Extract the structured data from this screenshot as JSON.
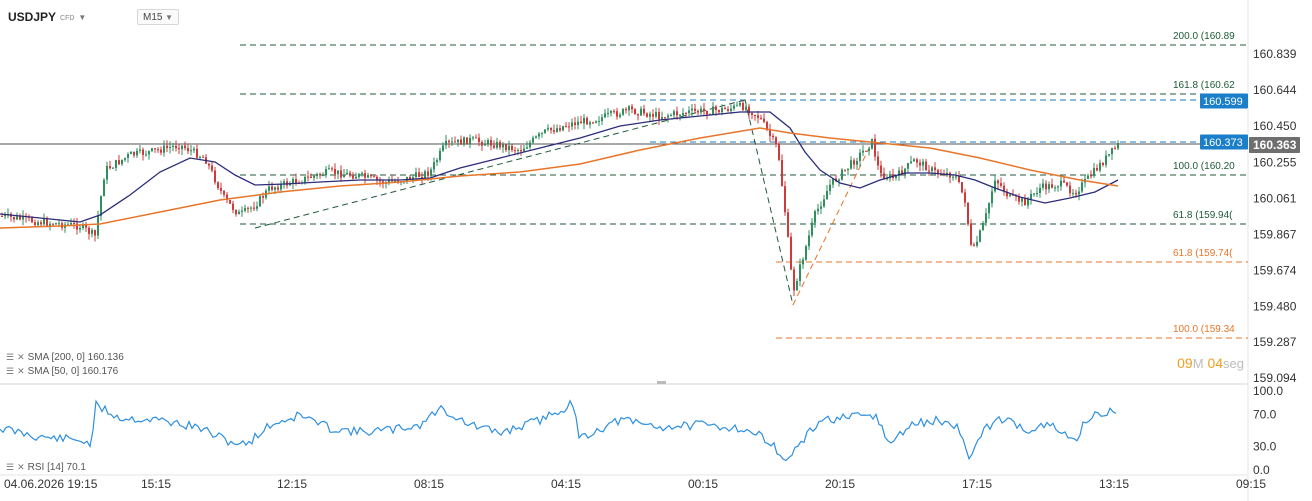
{
  "header": {
    "symbol": "USDJPY",
    "symbol_tag": "CFD",
    "timeframe": "M15"
  },
  "price_axis": {
    "labels": [
      "160.839",
      "160.644",
      "160.450",
      "160.255",
      "160.061",
      "159.867",
      "159.674",
      "159.480",
      "159.287",
      "159.094"
    ]
  },
  "price_tags": {
    "last_price": "160.363",
    "line_a": "160.373",
    "line_b": "160.599"
  },
  "fib_labels": [
    {
      "text": "200.0 (160.89",
      "color": "#1f5a3a"
    },
    {
      "text": "161.8 (160.62",
      "color": "#1f5a3a"
    },
    {
      "text": "100.0 (160.20",
      "color": "#1f5a3a"
    },
    {
      "text": "61.8 (159.94(",
      "color": "#1f5a3a"
    },
    {
      "text": "61.8 (159.74(",
      "color": "#e8752a"
    },
    {
      "text": "100.0 (159.34",
      "color": "#e8752a"
    }
  ],
  "indicators": {
    "sma200": "SMA [200, 0] 160.136",
    "sma50": "SMA [50, 0] 160.176",
    "rsi": "RSI [14] 70.1"
  },
  "rsi_axis": {
    "labels": [
      "100.0",
      "70.0",
      "30.0",
      "0.0"
    ]
  },
  "time_axis": {
    "labels": [
      "04.06.2026 19:15",
      "15:15",
      "12:15",
      "08:15",
      "04:15",
      "00:15",
      "20:15",
      "17:15",
      "13:15",
      "09:15"
    ]
  },
  "timer": {
    "m_val": "09",
    "m_unit": "M",
    "s_val": "04",
    "s_unit": "seg"
  },
  "colors": {
    "candle_up": "#2f8f5f",
    "candle_down": "#d03a3a",
    "sma50": "#2b2c7a",
    "sma200": "#e8752a",
    "rsi": "#2d8fe0",
    "fib_green": "#1f5a3a",
    "fib_orange": "#e8752a",
    "tag_blue": "#1a7ec9",
    "tag_gray": "#6e6e6e"
  }
}
